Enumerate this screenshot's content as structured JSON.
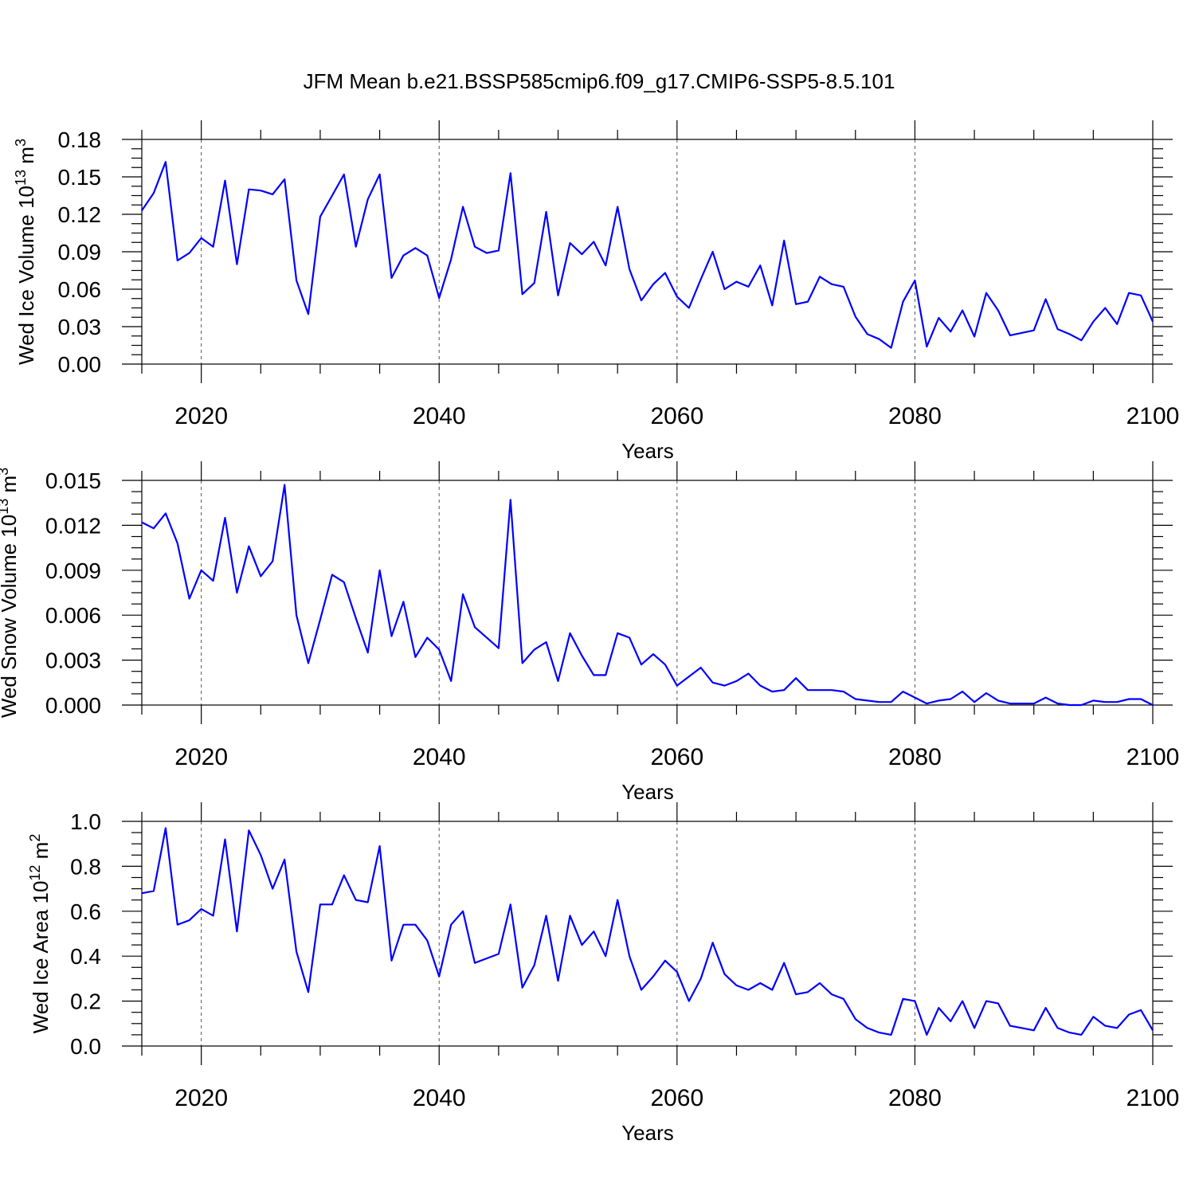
{
  "title": "JFM Mean b.e21.BSSP585cmip6.f09_g17.CMIP6-SSP5-8.5.101",
  "chart_data": [
    {
      "type": "line",
      "title": "JFM Mean b.e21.BSSP585cmip6.f09_g17.CMIP6-SSP5-8.5.101",
      "xlabel": "Years",
      "ylabel": "Wed Ice Volume 10",
      "ylabel_exp": "13",
      "ylabel_unit": "m",
      "ylabel_unit_exp": "3",
      "xlim": [
        2015,
        2100
      ],
      "ylim": [
        0,
        0.18
      ],
      "xticks": [
        "2020",
        "2040",
        "2060",
        "2080",
        "2100"
      ],
      "xtick_values": [
        2020,
        2040,
        2060,
        2080,
        2100
      ],
      "yticks": [
        "0.00",
        "0.03",
        "0.06",
        "0.09",
        "0.12",
        "0.15",
        "0.18"
      ],
      "ytick_values": [
        0,
        0.03,
        0.06,
        0.09,
        0.12,
        0.15,
        0.18
      ],
      "grid_x": [
        2020,
        2040,
        2060,
        2080
      ],
      "color": "#0000ff",
      "x_start": 2015,
      "values": [
        0.123,
        0.137,
        0.162,
        0.083,
        0.089,
        0.101,
        0.094,
        0.147,
        0.08,
        0.14,
        0.139,
        0.136,
        0.148,
        0.067,
        0.04,
        0.118,
        0.135,
        0.152,
        0.094,
        0.132,
        0.152,
        0.069,
        0.087,
        0.093,
        0.087,
        0.053,
        0.084,
        0.126,
        0.094,
        0.089,
        0.091,
        0.153,
        0.056,
        0.065,
        0.122,
        0.055,
        0.097,
        0.088,
        0.098,
        0.079,
        0.126,
        0.076,
        0.051,
        0.064,
        0.073,
        0.054,
        0.045,
        0.068,
        0.09,
        0.06,
        0.066,
        0.062,
        0.079,
        0.047,
        0.099,
        0.048,
        0.05,
        0.07,
        0.064,
        0.062,
        0.038,
        0.024,
        0.02,
        0.013,
        0.05,
        0.067,
        0.014,
        0.037,
        0.026,
        0.043,
        0.022,
        0.057,
        0.043,
        0.023,
        0.025,
        0.027,
        0.052,
        0.028,
        0.024,
        0.019,
        0.034,
        0.045,
        0.032,
        0.057,
        0.055,
        0.034
      ]
    },
    {
      "type": "line",
      "xlabel": "Years",
      "ylabel": "Wed Snow Volume 10",
      "ylabel_exp": "13",
      "ylabel_unit": "m",
      "ylabel_unit_exp": "3",
      "xlim": [
        2015,
        2100
      ],
      "ylim": [
        0,
        0.015
      ],
      "xticks": [
        "2020",
        "2040",
        "2060",
        "2080",
        "2100"
      ],
      "xtick_values": [
        2020,
        2040,
        2060,
        2080,
        2100
      ],
      "yticks": [
        "0.000",
        "0.003",
        "0.006",
        "0.009",
        "0.012",
        "0.015"
      ],
      "ytick_values": [
        0,
        0.003,
        0.006,
        0.009,
        0.012,
        0.015
      ],
      "grid_x": [
        2020,
        2040,
        2060,
        2080
      ],
      "color": "#0000ff",
      "x_start": 2015,
      "values": [
        0.0122,
        0.0118,
        0.0128,
        0.0108,
        0.0071,
        0.009,
        0.0083,
        0.0125,
        0.0075,
        0.0106,
        0.0086,
        0.0096,
        0.0147,
        0.006,
        0.0028,
        0.0057,
        0.0087,
        0.0082,
        0.0058,
        0.0035,
        0.009,
        0.0046,
        0.0069,
        0.0032,
        0.0045,
        0.0037,
        0.0016,
        0.0074,
        0.0052,
        0.0045,
        0.0038,
        0.0137,
        0.0028,
        0.0037,
        0.0042,
        0.0016,
        0.0048,
        0.0033,
        0.002,
        0.002,
        0.0048,
        0.0045,
        0.0027,
        0.0034,
        0.0027,
        0.0013,
        0.0019,
        0.0025,
        0.0015,
        0.0013,
        0.0016,
        0.0021,
        0.0013,
        0.0009,
        0.001,
        0.0018,
        0.001,
        0.001,
        0.001,
        0.0009,
        0.0004,
        0.0003,
        0.0002,
        0.0002,
        0.0009,
        0.0005,
        0.0001,
        0.0003,
        0.0004,
        0.0009,
        0.0002,
        0.0008,
        0.0003,
        0.0001,
        0.0001,
        0.0001,
        0.0005,
        0.0001,
        0.0,
        0.0,
        0.0003,
        0.0002,
        0.0002,
        0.0004,
        0.0004,
        0.0
      ]
    },
    {
      "type": "line",
      "xlabel": "Years",
      "ylabel": "Wed Ice Area 10",
      "ylabel_exp": "12",
      "ylabel_unit": "m",
      "ylabel_unit_exp": "2",
      "xlim": [
        2015,
        2100
      ],
      "ylim": [
        0,
        1.0
      ],
      "xticks": [
        "2020",
        "2040",
        "2060",
        "2080",
        "2100"
      ],
      "xtick_values": [
        2020,
        2040,
        2060,
        2080,
        2100
      ],
      "yticks": [
        "0.0",
        "0.2",
        "0.4",
        "0.6",
        "0.8",
        "1.0"
      ],
      "ytick_values": [
        0,
        0.2,
        0.4,
        0.6,
        0.8,
        1.0
      ],
      "grid_x": [
        2020,
        2040,
        2060,
        2080
      ],
      "color": "#0000ff",
      "x_start": 2015,
      "values": [
        0.68,
        0.69,
        0.97,
        0.54,
        0.56,
        0.61,
        0.58,
        0.92,
        0.51,
        0.96,
        0.85,
        0.7,
        0.83,
        0.42,
        0.24,
        0.63,
        0.63,
        0.76,
        0.65,
        0.64,
        0.89,
        0.38,
        0.54,
        0.54,
        0.47,
        0.31,
        0.54,
        0.6,
        0.37,
        0.39,
        0.41,
        0.63,
        0.26,
        0.36,
        0.58,
        0.29,
        0.58,
        0.45,
        0.51,
        0.4,
        0.65,
        0.4,
        0.25,
        0.31,
        0.38,
        0.33,
        0.2,
        0.3,
        0.46,
        0.32,
        0.27,
        0.25,
        0.28,
        0.25,
        0.37,
        0.23,
        0.24,
        0.28,
        0.23,
        0.21,
        0.12,
        0.08,
        0.06,
        0.05,
        0.21,
        0.2,
        0.05,
        0.17,
        0.11,
        0.2,
        0.08,
        0.2,
        0.19,
        0.09,
        0.08,
        0.07,
        0.17,
        0.08,
        0.06,
        0.05,
        0.13,
        0.09,
        0.08,
        0.14,
        0.16,
        0.07
      ]
    }
  ]
}
